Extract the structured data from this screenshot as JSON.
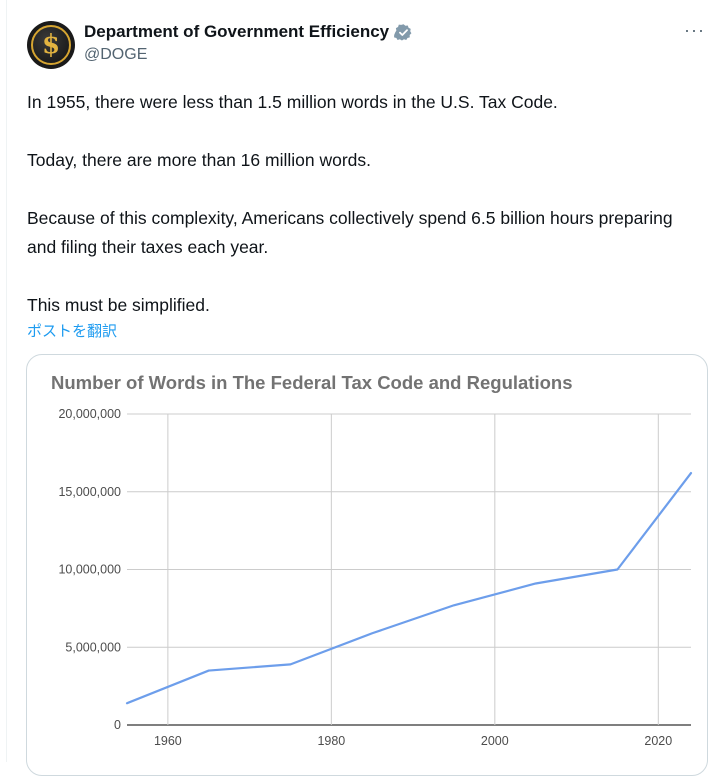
{
  "post": {
    "author_name": "Department of Government Efficiency",
    "handle": "@DOGE",
    "more_icon": "more-horizontal-icon",
    "verified_icon": "verified-badge-icon",
    "paragraphs": [
      "In 1955, there were less than 1.5 million words in the U.S. Tax Code.",
      "Today, there are more than 16 million words.",
      "Because of this complexity, Americans collectively spend 6.5 billion hours preparing and filing their taxes each year.",
      "This must be simplified."
    ],
    "translate_label": "ポストを翻訳"
  },
  "colors": {
    "accent": "#1d9bf0",
    "line": "#6d9eeb",
    "avatar_gold": "#d6a531"
  },
  "chart_data": {
    "type": "line",
    "title": "Number of Words in The Federal Tax Code and Regulations",
    "xlabel": "",
    "ylabel": "",
    "x": [
      1955,
      1965,
      1975,
      1985,
      1995,
      2005,
      2015,
      2024
    ],
    "series": [
      {
        "values": [
          1400000,
          3500000,
          3900000,
          5900000,
          7700000,
          9100000,
          10000000,
          16200000
        ]
      }
    ],
    "xticks": [
      "1960",
      "1980",
      "2000",
      "2020"
    ],
    "yticks": [
      "0",
      "5,000,000",
      "10,000,000",
      "15,000,000",
      "20,000,000"
    ],
    "xlim": [
      1955,
      2024
    ],
    "ylim": [
      0,
      20000000
    ],
    "grid": true
  }
}
